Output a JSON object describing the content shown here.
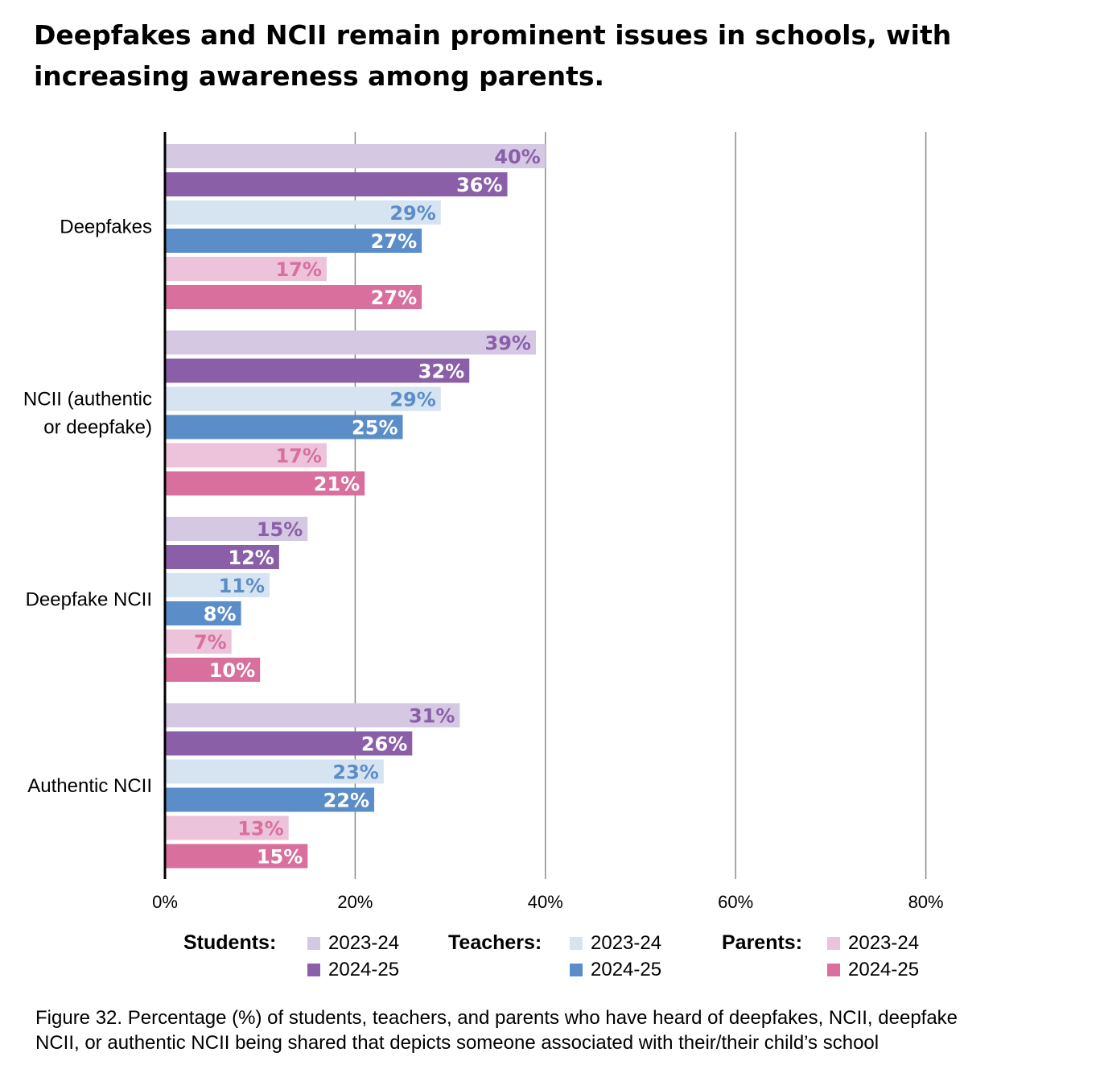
{
  "title": "Deepfakes and NCII remain prominent issues in schools, with increasing awareness among parents.",
  "chart_data": {
    "type": "bar",
    "orientation": "horizontal",
    "categories": [
      "Deepfakes",
      "NCII (authentic or deepfake)",
      "Deepfake NCII",
      "Authentic NCII"
    ],
    "category_lines": [
      [
        "Deepfakes"
      ],
      [
        "NCII (authentic",
        "or deepfake)"
      ],
      [
        "Deepfake NCII"
      ],
      [
        "Authentic NCII"
      ]
    ],
    "series": [
      {
        "name": "Students 2023-24",
        "group": "Students",
        "year": "2023-24",
        "color": "#d5c8e3",
        "label_color": "#8a5fa8",
        "values": [
          40,
          39,
          15,
          31
        ]
      },
      {
        "name": "Students 2024-25",
        "group": "Students",
        "year": "2024-25",
        "color": "#8a5fa8",
        "label_color": "#ffffff",
        "values": [
          36,
          32,
          12,
          26
        ]
      },
      {
        "name": "Teachers 2023-24",
        "group": "Teachers",
        "year": "2023-24",
        "color": "#d6e3f1",
        "label_color": "#5b8dc9",
        "values": [
          29,
          29,
          11,
          23
        ]
      },
      {
        "name": "Teachers 2024-25",
        "group": "Teachers",
        "year": "2024-25",
        "color": "#5b8dc9",
        "label_color": "#ffffff",
        "values": [
          27,
          25,
          8,
          22
        ]
      },
      {
        "name": "Parents 2023-24",
        "group": "Parents",
        "year": "2023-24",
        "color": "#ecc3da",
        "label_color": "#d86f9d",
        "values": [
          17,
          17,
          7,
          13
        ]
      },
      {
        "name": "Parents 2024-25",
        "group": "Parents",
        "year": "2024-25",
        "color": "#d86f9d",
        "label_color": "#ffffff",
        "values": [
          27,
          21,
          10,
          15
        ]
      }
    ],
    "value_labels": [
      [
        "40%",
        "39%",
        "15%",
        "31%"
      ],
      [
        "36%",
        "32%",
        "12%",
        "26%"
      ],
      [
        "29%",
        "29%",
        "11%",
        "23%"
      ],
      [
        "27%",
        "25%",
        "8%",
        "22%"
      ],
      [
        "17%",
        "17%",
        "7%",
        "13%"
      ],
      [
        "27%",
        "21%",
        "10%",
        "15%"
      ]
    ],
    "xlim": [
      0,
      100
    ],
    "xticks": [
      0,
      20,
      40,
      60,
      80
    ],
    "xtick_labels": [
      "0%",
      "20%",
      "40%",
      "60%",
      "80%"
    ],
    "grid": true,
    "legend_position": "bottom"
  },
  "legend": {
    "groups": [
      {
        "label": "Students:",
        "entries": [
          {
            "year": "2023-24",
            "color": "#d5c8e3"
          },
          {
            "year": "2024-25",
            "color": "#8a5fa8"
          }
        ]
      },
      {
        "label": "Teachers:",
        "entries": [
          {
            "year": "2023-24",
            "color": "#d6e3f1"
          },
          {
            "year": "2024-25",
            "color": "#5b8dc9"
          }
        ]
      },
      {
        "label": "Parents:",
        "entries": [
          {
            "year": "2023-24",
            "color": "#ecc3da"
          },
          {
            "year": "2024-25",
            "color": "#d86f9d"
          }
        ]
      }
    ]
  },
  "caption": {
    "line1": "Figure 32. Percentage (%) of students, teachers, and parents who have heard of deepfakes, NCII, deepfake",
    "line2": "NCII, or authentic NCII being shared that depicts someone associated with their/their child’s school"
  }
}
